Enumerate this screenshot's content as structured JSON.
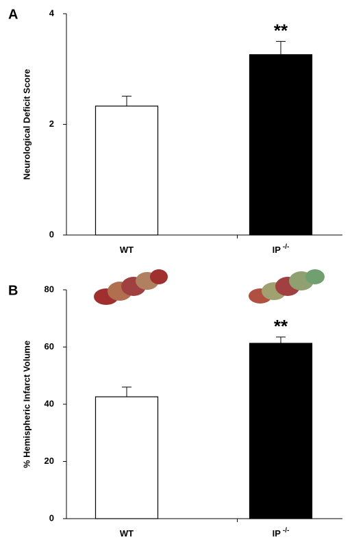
{
  "chart_data": [
    {
      "type": "bar",
      "panel_label": "A",
      "ylabel": "Neurological Deficit Score",
      "categories": [
        "WT",
        "IP"
      ],
      "category_superscripts": [
        null,
        "-/-"
      ],
      "values": [
        2.33,
        3.26
      ],
      "errors": [
        0.18,
        0.24
      ],
      "colors": [
        "#ffffff",
        "#000000"
      ],
      "annotation": "**",
      "ylim": [
        0,
        4
      ],
      "yticks": [
        0,
        2,
        4
      ]
    },
    {
      "type": "bar",
      "panel_label": "B",
      "ylabel": "% Hemispheric Infarct Volume",
      "categories": [
        "WT",
        "IP"
      ],
      "category_superscripts": [
        null,
        "-/-"
      ],
      "values": [
        42.6,
        61.3
      ],
      "errors": [
        3.4,
        2.2
      ],
      "colors": [
        "#ffffff",
        "#000000"
      ],
      "annotation": "**",
      "ylim": [
        0,
        80
      ],
      "yticks": [
        0,
        20,
        40,
        60,
        80
      ]
    }
  ]
}
